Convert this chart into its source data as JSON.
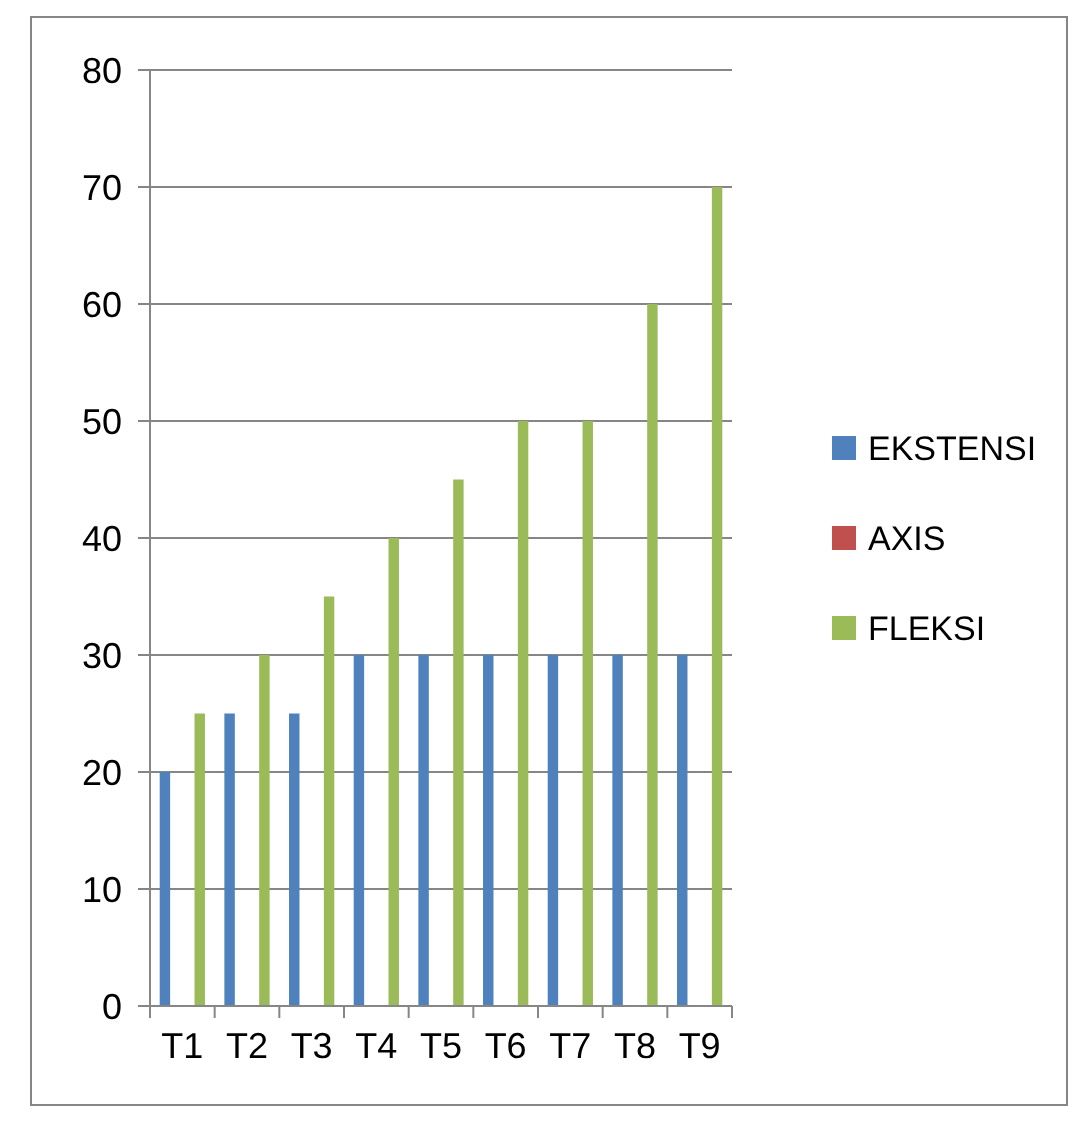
{
  "chart_data": {
    "type": "bar",
    "categories": [
      "T1",
      "T2",
      "T3",
      "T4",
      "T5",
      "T6",
      "T7",
      "T8",
      "T9"
    ],
    "series": [
      {
        "name": "EKSTENSI",
        "color": "#4f81bd",
        "values": [
          20,
          25,
          25,
          30,
          30,
          30,
          30,
          30,
          30
        ]
      },
      {
        "name": "AXIS",
        "color": "#c0504d",
        "values": [
          0,
          0,
          0,
          0,
          0,
          0,
          0,
          0,
          0
        ]
      },
      {
        "name": "FLEKSI",
        "color": "#9bbb59",
        "values": [
          25,
          30,
          35,
          40,
          45,
          50,
          50,
          60,
          70
        ]
      }
    ],
    "ylim": [
      0,
      80
    ],
    "yticks": [
      0,
      10,
      20,
      30,
      40,
      50,
      60,
      70,
      80
    ],
    "grid": "y",
    "legend": "right"
  }
}
